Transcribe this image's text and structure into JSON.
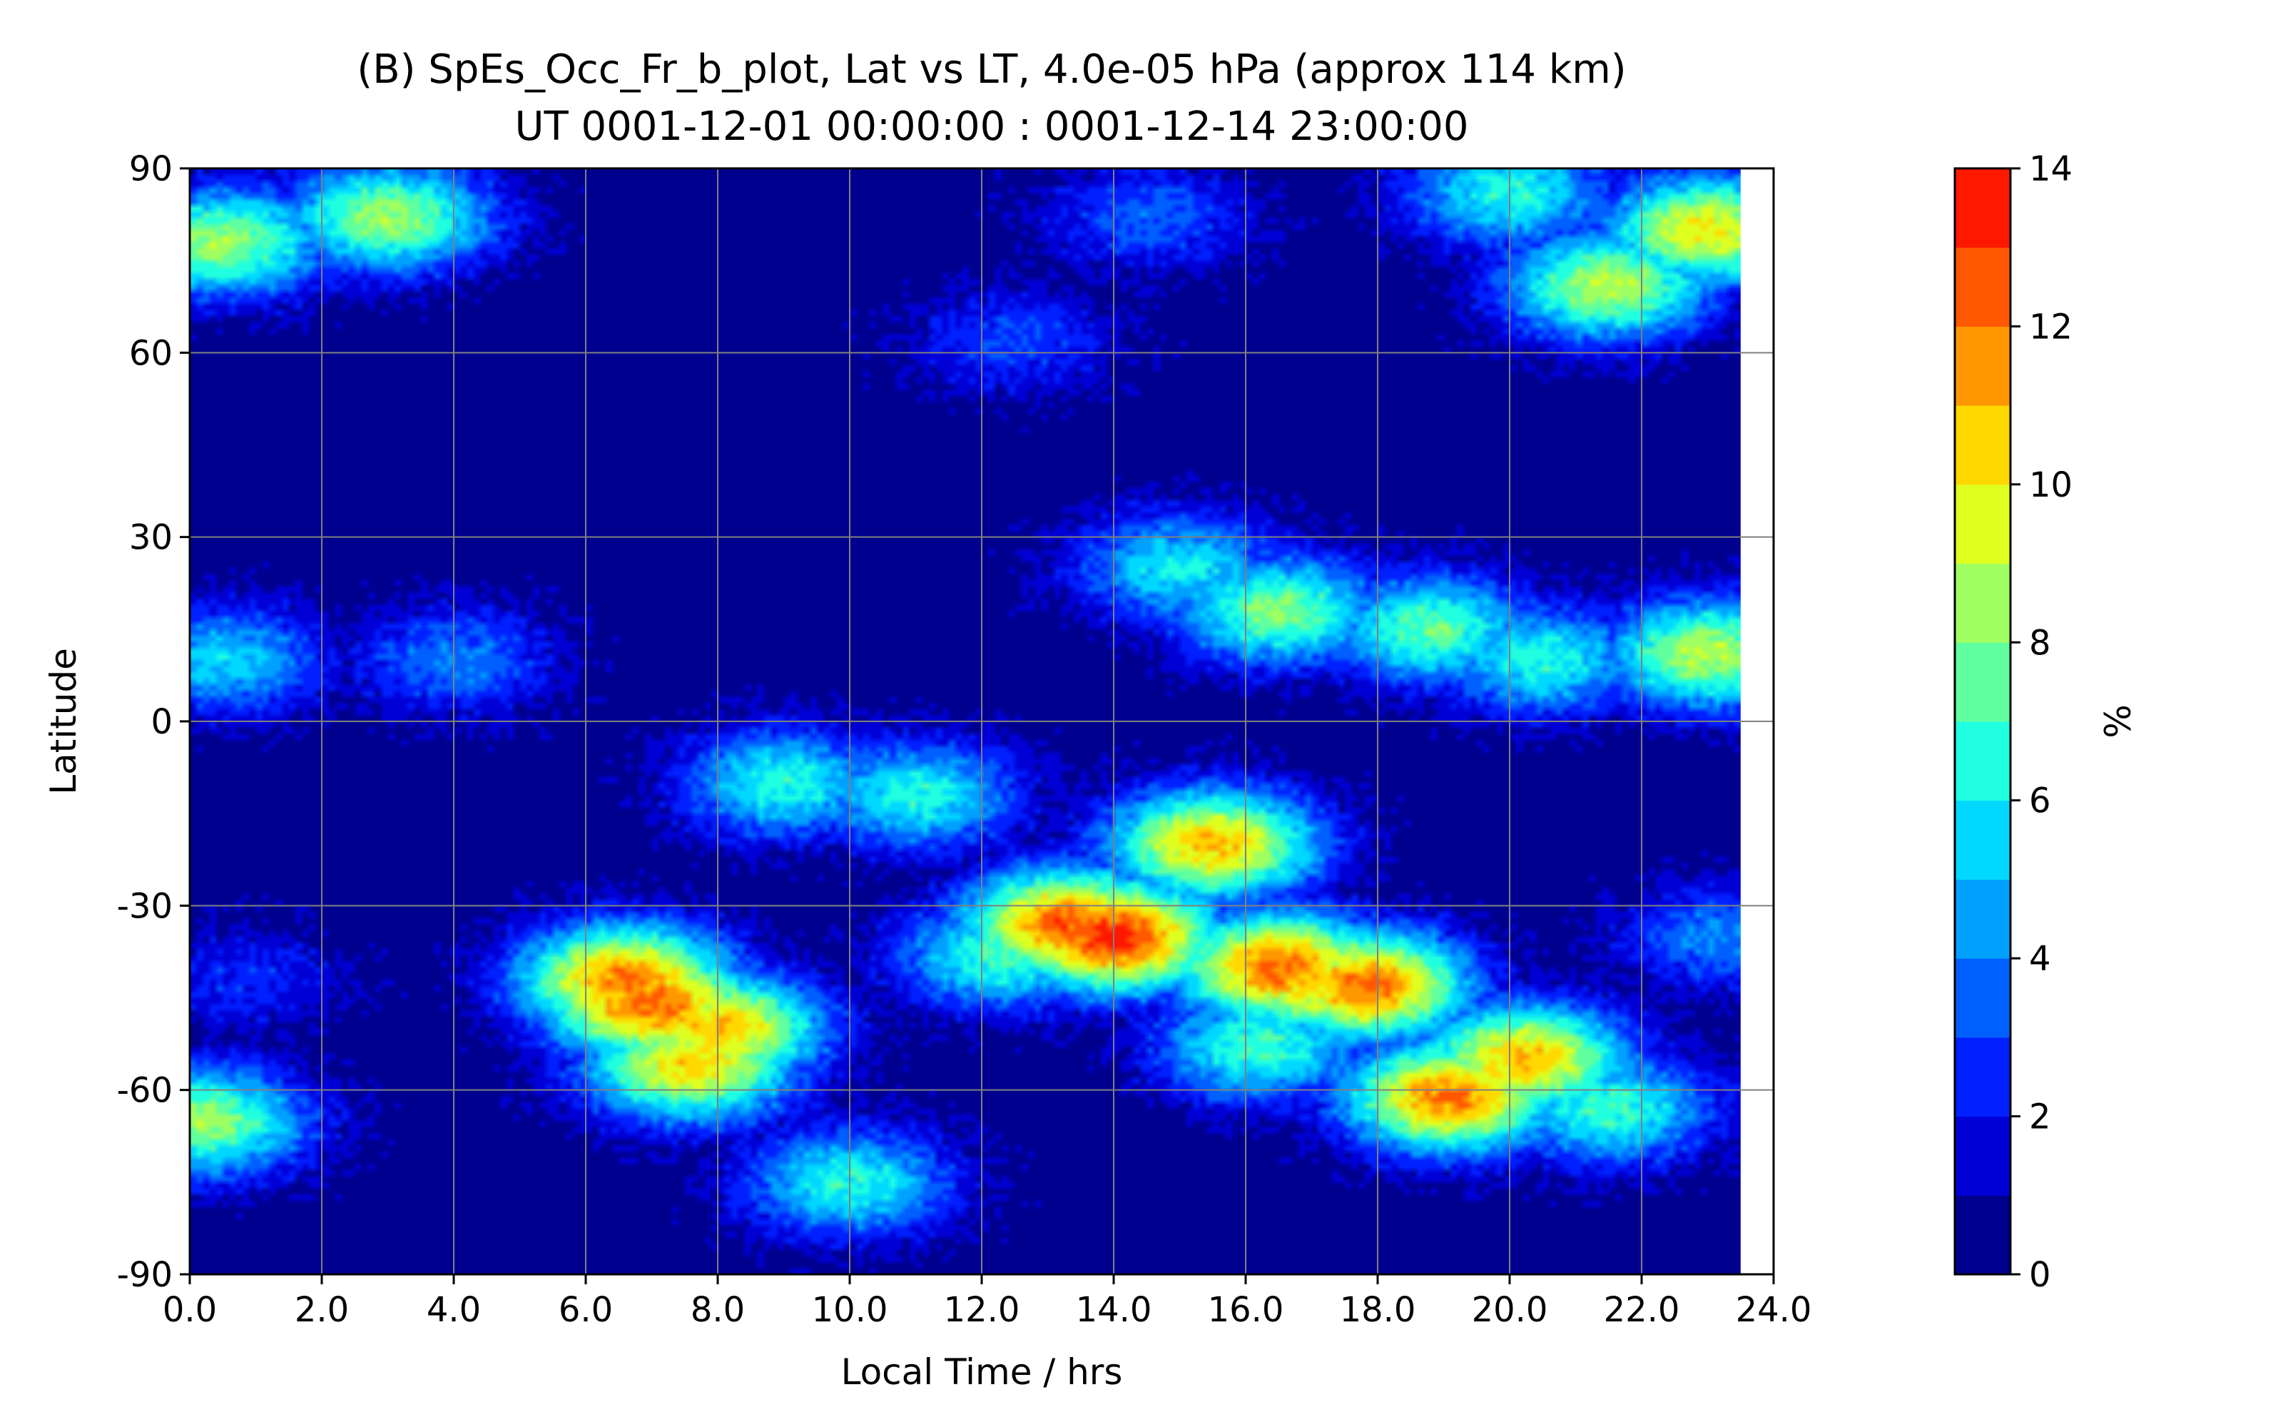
{
  "chart_data": {
    "type": "contourf",
    "title": "(B) SpEs_Occ_Fr_b_plot, Lat vs LT, 4.0e-05 hPa (approx 114 km)",
    "subtitle": "UT 0001-12-01 00:00:00 : 0001-12-14 23:00:00",
    "xlabel": "Local Time / hrs",
    "ylabel": "Latitude",
    "xlim": [
      0,
      24
    ],
    "ylim": [
      -90,
      90
    ],
    "data_xmax": 23.5,
    "xticks": [
      0,
      2,
      4,
      6,
      8,
      10,
      12,
      14,
      16,
      18,
      20,
      22,
      24
    ],
    "xtick_labels": [
      "0.0",
      "2.0",
      "4.0",
      "6.0",
      "8.0",
      "10.0",
      "12.0",
      "14.0",
      "16.0",
      "18.0",
      "20.0",
      "22.0",
      "24.0"
    ],
    "yticks": [
      90,
      60,
      30,
      0,
      -30,
      -60,
      -90
    ],
    "ytick_labels": [
      "90",
      "60",
      "30",
      "0",
      "-30",
      "-60",
      "-90"
    ],
    "grid": true,
    "colorbar": {
      "label": "%",
      "min": 0,
      "max": 14,
      "levels": [
        0,
        1,
        2,
        3,
        4,
        5,
        6,
        7,
        8,
        9,
        10,
        11,
        12,
        13,
        14
      ],
      "colors": [
        "#00008f",
        "#0000d6",
        "#0020ff",
        "#0060ff",
        "#00a0ff",
        "#00d8ff",
        "#20ffe0",
        "#60ff9f",
        "#a0ff60",
        "#dfff20",
        "#ffd800",
        "#ff9800",
        "#ff5800",
        "#ff1800",
        "#a00000"
      ],
      "ticks": [
        0,
        2,
        4,
        6,
        8,
        10,
        12,
        14
      ],
      "tick_labels": [
        "0",
        "2",
        "4",
        "6",
        "8",
        "10",
        "12",
        "14"
      ]
    },
    "features": [
      {
        "lt": 14.0,
        "lat": -35,
        "value": 13.6
      },
      {
        "lt": 13.3,
        "lat": -33,
        "value": 12.5
      },
      {
        "lt": 7.0,
        "lat": -46,
        "value": 12.5
      },
      {
        "lt": 6.6,
        "lat": -42,
        "value": 12.0
      },
      {
        "lt": 16.5,
        "lat": -40,
        "value": 12.3
      },
      {
        "lt": 17.8,
        "lat": -43,
        "value": 12.3
      },
      {
        "lt": 17.0,
        "lat": -42,
        "value": 11.0
      },
      {
        "lt": 15.5,
        "lat": -20,
        "value": 11.0
      },
      {
        "lt": 8.0,
        "lat": -50,
        "value": 11.0
      },
      {
        "lt": 7.6,
        "lat": -56,
        "value": 10.5
      },
      {
        "lt": 19.1,
        "lat": -61,
        "value": 12.0
      },
      {
        "lt": 20.2,
        "lat": -55,
        "value": 11.0
      },
      {
        "lt": 16.2,
        "lat": -53,
        "value": 7.0
      },
      {
        "lt": 12.3,
        "lat": -38,
        "value": 7.0
      },
      {
        "lt": 11.0,
        "lat": -12,
        "value": 6.5
      },
      {
        "lt": 9.0,
        "lat": -10,
        "value": 6.5
      },
      {
        "lt": 16.5,
        "lat": 18,
        "value": 8.0
      },
      {
        "lt": 18.8,
        "lat": 15,
        "value": 7.5
      },
      {
        "lt": 15.0,
        "lat": 25,
        "value": 6.0
      },
      {
        "lt": 20.5,
        "lat": 10,
        "value": 6.5
      },
      {
        "lt": 3.0,
        "lat": 82,
        "value": 8.5
      },
      {
        "lt": 0.5,
        "lat": 78,
        "value": 8.5
      },
      {
        "lt": 23.0,
        "lat": 80,
        "value": 10.0
      },
      {
        "lt": 21.5,
        "lat": 71,
        "value": 9.0
      },
      {
        "lt": 20.0,
        "lat": 86,
        "value": 6.5
      },
      {
        "lt": 23.0,
        "lat": 11,
        "value": 9.0
      },
      {
        "lt": 0.5,
        "lat": 10,
        "value": 5.5
      },
      {
        "lt": 0.2,
        "lat": -65,
        "value": 8.5
      },
      {
        "lt": 10.0,
        "lat": -75,
        "value": 6.5
      },
      {
        "lt": 21.5,
        "lat": -63,
        "value": 7.0
      },
      {
        "lt": 14.5,
        "lat": 82,
        "value": 3.5
      },
      {
        "lt": 12.5,
        "lat": 62,
        "value": 3.0
      },
      {
        "lt": 4.0,
        "lat": 10,
        "value": 4.0
      },
      {
        "lt": 23.2,
        "lat": -35,
        "value": 4.0
      },
      {
        "lt": 0.8,
        "lat": -42,
        "value": 2.5
      }
    ]
  }
}
